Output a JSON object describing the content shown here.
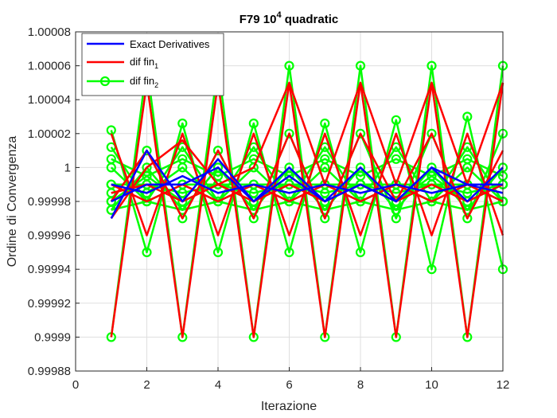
{
  "colors": {
    "exact": "#0000ff",
    "fin1": "#ff0000",
    "fin2": "#00ff00",
    "axis": "#262626",
    "grid": "#dfdfdf"
  },
  "chart_data": {
    "type": "line",
    "title": "F79 10",
    "title_superscript": "4",
    "title_suffix": " quadratic",
    "xlabel": "Iterazione",
    "ylabel": "Ordine di Convergenza",
    "xlim": [
      0,
      12
    ],
    "ylim": [
      0.99988,
      1.00008
    ],
    "xticks": [
      0,
      2,
      4,
      6,
      8,
      10,
      12
    ],
    "xtick_labels": [
      "0",
      "2",
      "4",
      "6",
      "8",
      "10",
      "12"
    ],
    "yticks": [
      0.99988,
      0.9999,
      0.99992,
      0.99994,
      0.99996,
      0.99998,
      1,
      1.00002,
      1.00004,
      1.00006,
      1.00008
    ],
    "ytick_labels": [
      "0.99988",
      "0.9999",
      "0.99992",
      "0.99994",
      "0.99996",
      "0.99998",
      "1",
      "1.00002",
      "1.00004",
      "1.00006",
      "1.00008"
    ],
    "grid": true,
    "legend_position": "top-left",
    "x": [
      1,
      2,
      3,
      4,
      5,
      6,
      7,
      8,
      9,
      10,
      11,
      12
    ],
    "series": [
      {
        "name": "Exact Derivatives",
        "color_key": "exact",
        "marker": "none",
        "lines": [
          [
            0.99997,
            1.00001,
            0.99998,
            1.000005,
            0.99998,
            1.0,
            0.99998,
            1.0,
            0.99998,
            1.0,
            0.99998,
            1.0
          ],
          [
            0.99998,
            0.99999,
            0.99999,
            1.0,
            0.99998,
            0.999995,
            0.99998,
            0.99999,
            0.99998,
            1.0,
            0.99999,
            0.99999
          ],
          [
            0.99999,
            0.999985,
            0.999995,
            0.999985,
            0.99999,
            0.999985,
            0.99999,
            0.999985,
            0.99999,
            0.999985,
            0.99999,
            0.999985
          ]
        ]
      },
      {
        "name": "dif fin",
        "subscript": "1",
        "color_key": "fin1",
        "marker": "none",
        "lines": [
          [
            0.99997,
            1.0,
            1.000016,
            0.99999,
            1.0,
            1.00005,
            0.99999,
            1.00005,
            0.99999,
            1.00005,
            0.99999,
            1.00005
          ],
          [
            0.9999,
            1.00005,
            0.9999,
            1.00005,
            0.9999,
            1.00005,
            0.9999,
            1.00005,
            0.9999,
            1.00005,
            0.9999,
            1.00005
          ],
          [
            1.00002,
            0.99996,
            1.00002,
            0.99996,
            1.00002,
            0.99996,
            1.00002,
            0.99996,
            1.00002,
            0.99996,
            1.00002,
            0.99996
          ],
          [
            0.99998,
            1.00001,
            0.99997,
            1.00001,
            0.99997,
            1.00002,
            0.99997,
            1.00002,
            0.99998,
            1.00002,
            0.99997,
            1.00001
          ],
          [
            0.99999,
            0.99998,
            0.99999,
            0.99998,
            0.99999,
            0.99998,
            0.99999,
            0.99998,
            0.99999,
            0.99998,
            0.99999,
            0.99998
          ],
          [
            0.999985,
            0.99999,
            0.99998,
            0.99999,
            0.99998,
            0.99999,
            0.99998,
            0.99999,
            0.99998,
            0.99999,
            0.99998,
            0.99999
          ]
        ]
      },
      {
        "name": "dif fin",
        "subscript": "2",
        "color_key": "fin2",
        "marker": "circle",
        "lines": [
          [
            0.9999,
            1.00006,
            0.9999,
            1.00006,
            0.9999,
            1.00006,
            0.9999,
            1.00006,
            0.9999,
            1.00006,
            0.9999,
            1.00006
          ],
          [
            1.000022,
            0.99995,
            1.000026,
            0.99995,
            1.000026,
            0.99995,
            1.000026,
            0.99995,
            1.000028,
            0.99994,
            1.00003,
            0.99994
          ],
          [
            0.99998,
            1.00001,
            0.99997,
            1.00001,
            0.99997,
            1.00002,
            0.99997,
            1.00002,
            0.99997,
            1.00002,
            0.99997,
            1.00002
          ],
          [
            0.99999,
            0.999985,
            1.0,
            0.99998,
            1.0,
            0.99998,
            1.0,
            0.99998,
            0.99999,
            0.99998,
            1.0,
            0.99998
          ],
          [
            0.99998,
            0.999995,
            0.99998,
            0.99999,
            0.99998,
            0.999995,
            0.99998,
            0.99999,
            0.99998,
            0.999995,
            0.99998,
            0.99999
          ],
          [
            1.0,
            0.99998,
            0.99999,
            0.99998,
            0.99999,
            0.99998,
            0.99999,
            0.99998,
            0.99999,
            0.99998,
            0.99999,
            0.99998
          ],
          [
            0.999975,
            0.99998,
            0.999975,
            0.99998,
            0.999975,
            0.99998,
            0.999975,
            0.99998,
            0.999975,
            0.99998,
            0.999975,
            0.99998
          ],
          [
            0.99999,
            0.99999,
            0.99999,
            0.99999,
            0.99999,
            0.99999,
            0.99999,
            0.99999,
            0.99999,
            0.99999,
            0.99999,
            0.99999
          ],
          [
            1.000005,
            0.999995,
            1.000005,
            0.999995,
            1.000005,
            0.999995,
            1.000005,
            0.999995,
            1.000005,
            0.999995,
            1.000005,
            0.999995
          ],
          [
            0.999985,
            0.99999,
            0.999985,
            0.99999,
            0.999985,
            0.99999,
            0.999985,
            0.99999,
            0.999985,
            0.99999,
            0.999985,
            0.99999
          ],
          [
            1.000012,
            0.99998,
            1.000012,
            0.99998,
            1.000012,
            0.99998,
            1.000012,
            0.99998,
            1.000012,
            0.99998,
            1.000012,
            0.99998
          ],
          [
            0.999975,
            1.0,
            0.999975,
            1.0,
            0.999975,
            1.0,
            0.999975,
            1.0,
            0.999975,
            1.0,
            0.999975,
            1.0
          ]
        ]
      }
    ]
  }
}
